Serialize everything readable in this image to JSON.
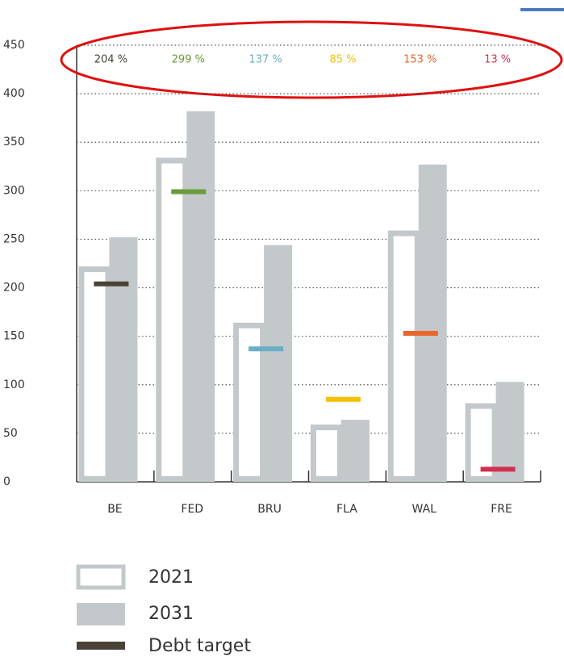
{
  "chart_data": {
    "type": "bar",
    "categories": [
      "BE",
      "FED",
      "BRU",
      "FLA",
      "WAL",
      "FRE"
    ],
    "series": [
      {
        "name": "2021",
        "color": "#c3c8cb",
        "values": [
          222,
          334,
          164,
          59,
          259,
          81
        ]
      },
      {
        "name": "2031",
        "color": "#c3c8cb",
        "values": [
          252,
          382,
          244,
          64,
          327,
          103
        ]
      },
      {
        "name": "Debt target",
        "color": "#4a4236",
        "colors": [
          "#4a4236",
          "#6a9a3a",
          "#6aaec8",
          "#f5c000",
          "#e8662a",
          "#d0304e"
        ],
        "values": [
          204,
          299,
          137,
          85,
          153,
          13
        ],
        "value_labels": [
          "204 %",
          "299 %",
          "137 %",
          "85 %",
          "153 %",
          "13 %"
        ]
      }
    ],
    "ylim": [
      0,
      450
    ],
    "yticks": [
      0,
      50,
      100,
      150,
      200,
      250,
      300,
      350,
      400,
      450
    ],
    "grid": true
  }
}
